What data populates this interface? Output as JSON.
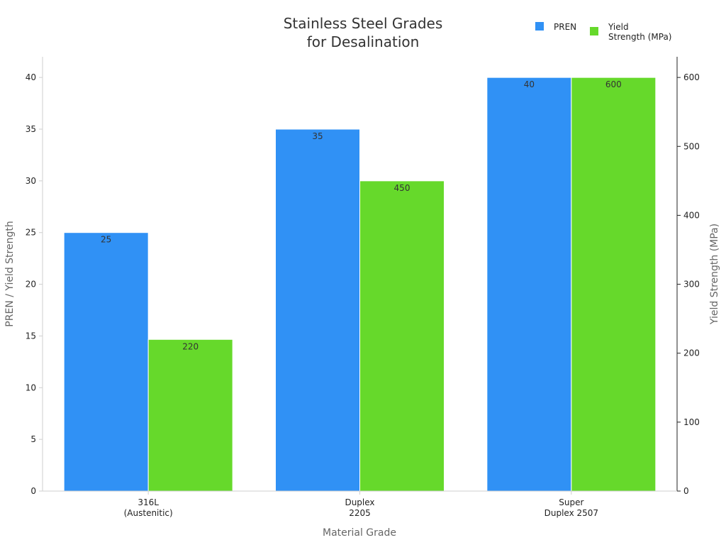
{
  "chart_data": {
    "type": "bar",
    "title_lines": [
      "Stainless Steel Grades",
      "for Desalination"
    ],
    "categories": [
      [
        "316L",
        "(Austenitic)"
      ],
      [
        "Duplex",
        "2205"
      ],
      [
        "Super",
        "Duplex 2507"
      ]
    ],
    "series": [
      {
        "name": "PREN",
        "axis": "left",
        "color": "#3091f5",
        "values": [
          25,
          35,
          40
        ],
        "labels": [
          "25",
          "35",
          "40"
        ]
      },
      {
        "name": "Yield Strength (MPa)",
        "legend_lines": [
          "Yield",
          "Strength (MPa)"
        ],
        "axis": "right",
        "color": "#66d92b",
        "values": [
          220,
          450,
          600
        ],
        "labels": [
          "220",
          "450",
          "600"
        ]
      }
    ],
    "xlabel": "Material Grade",
    "ylabel_left": "PREN / Yield Strength",
    "ylabel_right": "Yield Strength (MPa)",
    "ylim_left": [
      0,
      42
    ],
    "yticks_left": [
      0,
      5,
      10,
      15,
      20,
      25,
      30,
      35,
      40
    ],
    "ylim_right": [
      0,
      630
    ],
    "yticks_right": [
      0,
      100,
      200,
      300,
      400,
      500,
      600
    ],
    "grid": false,
    "legend_position": "top-right"
  }
}
